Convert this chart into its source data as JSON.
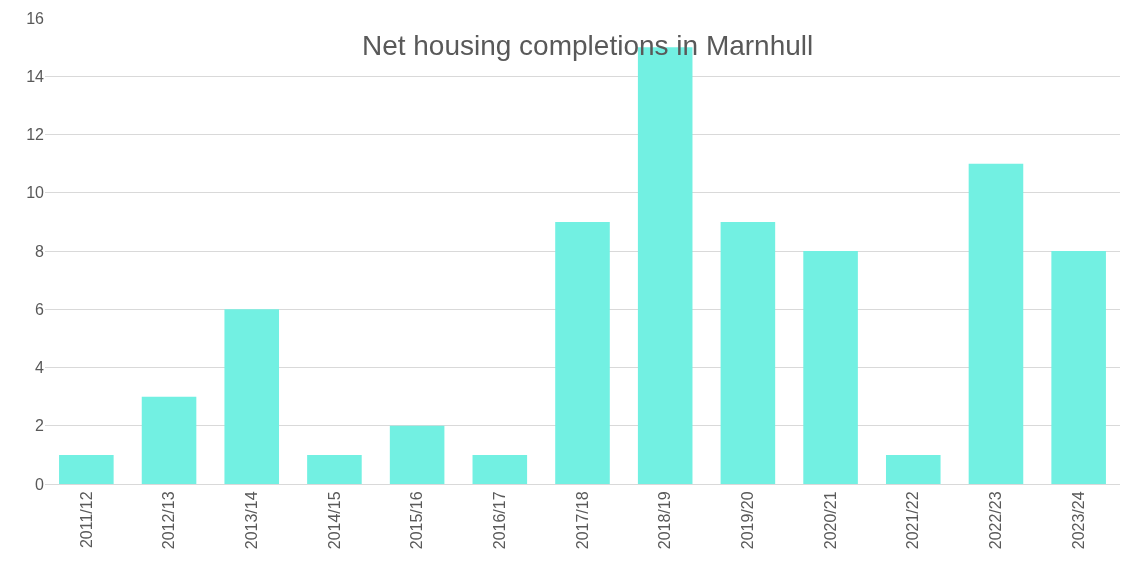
{
  "chart_data": {
    "type": "bar",
    "title": "Net housing completions in Marnhull",
    "categories": [
      "2011/12",
      "2012/13",
      "2013/14",
      "2014/15",
      "2015/16",
      "2016/17",
      "2017/18",
      "2018/19",
      "2019/20",
      "2020/21",
      "2021/22",
      "2022/23",
      "2023/24"
    ],
    "values": [
      1,
      3,
      6,
      1,
      2,
      1,
      9,
      15,
      9,
      8,
      1,
      11,
      8
    ],
    "color": "#72f0e2",
    "ylim": [
      0,
      16
    ],
    "yticks": [
      0,
      2,
      4,
      6,
      8,
      10,
      12,
      14,
      16
    ],
    "grid": "y",
    "legend": false
  }
}
